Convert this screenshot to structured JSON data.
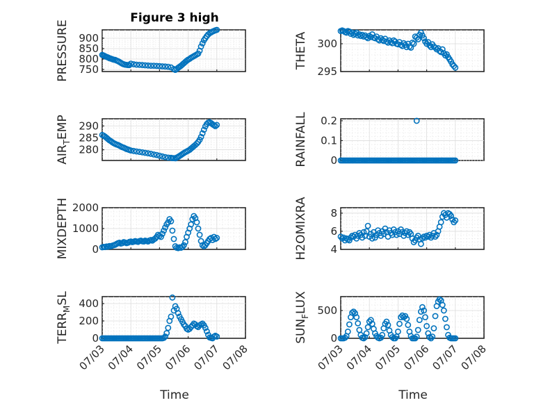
{
  "figure": {
    "title": "Figure 3 high",
    "marker_color": "#0072BD",
    "xlabel": "Time",
    "x_ticks": [
      "07/03",
      "07/04",
      "07/05",
      "07/06",
      "07/07",
      "07/08"
    ]
  },
  "chart_data": [
    {
      "type": "scatter",
      "ylabel": "PRESSURE",
      "title": "Figure 3 high",
      "xlim": [
        0,
        5
      ],
      "ylim": [
        740,
        940
      ],
      "yticks": [
        750,
        800,
        850,
        900
      ],
      "grid": true,
      "x": [
        0.0,
        0.04,
        0.08,
        0.12,
        0.16,
        0.2,
        0.24,
        0.28,
        0.32,
        0.36,
        0.4,
        0.45,
        0.5,
        0.55,
        0.6,
        0.65,
        0.7,
        0.75,
        0.8,
        0.85,
        0.9,
        0.95,
        1.0,
        1.1,
        1.2,
        1.3,
        1.4,
        1.5,
        1.6,
        1.7,
        1.8,
        1.9,
        2.0,
        2.1,
        2.2,
        2.3,
        2.4,
        2.5,
        2.55,
        2.6,
        2.65,
        2.7,
        2.75,
        2.8,
        2.85,
        2.9,
        2.95,
        3.0,
        3.05,
        3.1,
        3.15,
        3.2,
        3.25,
        3.3,
        3.35,
        3.4,
        3.45,
        3.5,
        3.55,
        3.6,
        3.65,
        3.7,
        3.75,
        3.8,
        3.85,
        3.9,
        3.95,
        4.0
      ],
      "y": [
        820,
        818,
        815,
        812,
        810,
        808,
        805,
        803,
        801,
        799,
        797,
        796,
        793,
        790,
        786,
        782,
        778,
        775,
        773,
        772,
        771,
        771,
        778,
        775,
        773,
        772,
        771,
        770,
        769,
        768,
        768,
        767,
        766,
        765,
        764,
        763,
        760,
        752,
        748,
        752,
        758,
        763,
        768,
        774,
        780,
        786,
        792,
        797,
        801,
        806,
        810,
        814,
        818,
        822,
        826,
        840,
        860,
        875,
        890,
        900,
        910,
        918,
        924,
        928,
        932,
        935,
        938,
        940
      ]
    },
    {
      "type": "scatter",
      "ylabel": "THETA",
      "xlim": [
        0,
        5
      ],
      "ylim": [
        295,
        302.5
      ],
      "yticks": [
        295,
        300
      ],
      "grid": true,
      "x": [
        0.0,
        0.05,
        0.1,
        0.15,
        0.2,
        0.25,
        0.3,
        0.35,
        0.4,
        0.45,
        0.5,
        0.55,
        0.6,
        0.65,
        0.7,
        0.75,
        0.8,
        0.85,
        0.9,
        0.95,
        1.0,
        1.05,
        1.1,
        1.15,
        1.2,
        1.25,
        1.3,
        1.35,
        1.4,
        1.45,
        1.5,
        1.55,
        1.6,
        1.65,
        1.7,
        1.75,
        1.8,
        1.85,
        1.9,
        1.95,
        2.0,
        2.05,
        2.1,
        2.15,
        2.2,
        2.25,
        2.3,
        2.35,
        2.4,
        2.45,
        2.5,
        2.55,
        2.6,
        2.65,
        2.7,
        2.75,
        2.8,
        2.85,
        2.9,
        2.95,
        3.0,
        3.05,
        3.1,
        3.15,
        3.2,
        3.25,
        3.3,
        3.35,
        3.4,
        3.45,
        3.5,
        3.55,
        3.6,
        3.65,
        3.7,
        3.75,
        3.8,
        3.85,
        3.9,
        3.95,
        4.0
      ],
      "y": [
        302.3,
        302.4,
        302.3,
        302.1,
        302.0,
        302.3,
        302.2,
        301.8,
        302.0,
        301.6,
        301.8,
        302.0,
        301.5,
        301.7,
        301.4,
        301.6,
        301.3,
        301.5,
        301.2,
        301.0,
        301.4,
        301.2,
        301.7,
        301.1,
        301.0,
        301.3,
        300.8,
        300.6,
        301.0,
        300.7,
        300.5,
        300.9,
        300.4,
        300.2,
        300.6,
        300.3,
        300.1,
        300.6,
        300.4,
        300.0,
        299.9,
        300.3,
        299.8,
        299.6,
        300.1,
        299.8,
        299.4,
        300.0,
        299.5,
        299.3,
        300.2,
        300.0,
        301.3,
        301.1,
        300.8,
        301.6,
        302.0,
        301.5,
        301.0,
        300.4,
        300.0,
        300.3,
        299.7,
        299.4,
        299.9,
        299.5,
        299.3,
        299.0,
        299.2,
        298.7,
        298.5,
        299.0,
        298.3,
        297.9,
        298.1,
        297.6,
        297.2,
        296.8,
        296.3,
        296.0,
        295.7
      ]
    },
    {
      "type": "scatter",
      "ylabel": "AIR_TEMP",
      "xlim": [
        0,
        5
      ],
      "ylim": [
        275.5,
        293
      ],
      "yticks": [
        280,
        285,
        290
      ],
      "grid": true,
      "x": [
        0.0,
        0.05,
        0.1,
        0.15,
        0.2,
        0.25,
        0.3,
        0.35,
        0.4,
        0.45,
        0.5,
        0.55,
        0.6,
        0.65,
        0.7,
        0.75,
        0.8,
        0.85,
        0.9,
        0.95,
        1.0,
        1.1,
        1.2,
        1.3,
        1.4,
        1.5,
        1.6,
        1.7,
        1.8,
        1.9,
        2.0,
        2.1,
        2.2,
        2.3,
        2.4,
        2.45,
        2.5,
        2.55,
        2.6,
        2.65,
        2.7,
        2.75,
        2.8,
        2.85,
        2.9,
        2.95,
        3.0,
        3.05,
        3.1,
        3.15,
        3.2,
        3.25,
        3.3,
        3.35,
        3.4,
        3.45,
        3.5,
        3.55,
        3.6,
        3.65,
        3.7,
        3.75,
        3.8,
        3.85,
        3.9,
        3.95,
        4.0
      ],
      "y": [
        286.2,
        285.9,
        285.5,
        285.0,
        284.5,
        284.0,
        283.6,
        283.2,
        282.8,
        282.5,
        282.2,
        282.0,
        281.7,
        281.4,
        281.1,
        280.9,
        280.6,
        280.3,
        280.1,
        279.9,
        279.7,
        279.5,
        279.3,
        279.1,
        278.9,
        278.7,
        278.5,
        278.3,
        278.0,
        277.8,
        277.5,
        277.2,
        276.9,
        276.7,
        276.6,
        276.5,
        276.5,
        276.4,
        276.7,
        277.0,
        277.4,
        277.8,
        278.2,
        278.6,
        279.0,
        279.3,
        279.6,
        280.0,
        280.5,
        281.0,
        281.5,
        282.0,
        282.6,
        283.3,
        284.2,
        285.4,
        286.9,
        288.4,
        289.8,
        290.8,
        291.4,
        291.6,
        291.2,
        290.7,
        290.3,
        289.9,
        290.4
      ]
    },
    {
      "type": "scatter",
      "ylabel": "RAINFALL",
      "xlim": [
        0,
        5
      ],
      "ylim": [
        0,
        0.21
      ],
      "yticks": [
        0,
        0.1,
        0.2
      ],
      "grid": true,
      "x": [
        0.0,
        0.05,
        0.1,
        0.15,
        0.2,
        0.25,
        0.3,
        0.35,
        0.4,
        0.45,
        0.5,
        0.55,
        0.6,
        0.65,
        0.7,
        0.75,
        0.8,
        0.85,
        0.9,
        0.95,
        1.0,
        1.05,
        1.1,
        1.15,
        1.2,
        1.25,
        1.3,
        1.35,
        1.4,
        1.45,
        1.5,
        1.55,
        1.6,
        1.65,
        1.7,
        1.75,
        1.8,
        1.85,
        1.9,
        1.95,
        2.0,
        2.05,
        2.1,
        2.15,
        2.2,
        2.25,
        2.3,
        2.35,
        2.4,
        2.45,
        2.5,
        2.55,
        2.6,
        2.65,
        2.7,
        2.75,
        2.8,
        2.85,
        2.9,
        2.95,
        3.0,
        3.05,
        3.1,
        3.15,
        3.2,
        3.25,
        3.3,
        3.35,
        3.4,
        3.45,
        3.5,
        3.55,
        3.6,
        3.65,
        3.7,
        3.75,
        3.8,
        3.85,
        3.9,
        3.95,
        4.0,
        2.65
      ],
      "y": [
        0,
        0,
        0,
        0,
        0,
        0,
        0,
        0,
        0,
        0,
        0,
        0,
        0,
        0,
        0,
        0,
        0,
        0,
        0,
        0,
        0,
        0,
        0,
        0,
        0,
        0,
        0,
        0,
        0,
        0,
        0,
        0,
        0,
        0,
        0,
        0,
        0,
        0,
        0,
        0,
        0,
        0,
        0,
        0,
        0,
        0,
        0,
        0,
        0,
        0,
        0,
        0,
        0,
        0,
        0,
        0,
        0,
        0,
        0,
        0,
        0,
        0,
        0,
        0,
        0,
        0,
        0,
        0,
        0,
        0,
        0,
        0,
        0,
        0,
        0,
        0,
        0,
        0,
        0,
        0,
        0,
        0.2
      ]
    },
    {
      "type": "scatter",
      "ylabel": "MIXDEPTH",
      "xlim": [
        0,
        5
      ],
      "ylim": [
        0,
        2000
      ],
      "yticks": [
        0,
        1000,
        2000
      ],
      "grid": true,
      "x": [
        0.0,
        0.05,
        0.1,
        0.15,
        0.2,
        0.25,
        0.3,
        0.35,
        0.4,
        0.45,
        0.5,
        0.55,
        0.6,
        0.65,
        0.7,
        0.75,
        0.8,
        0.85,
        0.9,
        0.95,
        1.0,
        1.05,
        1.1,
        1.15,
        1.2,
        1.25,
        1.3,
        1.35,
        1.4,
        1.45,
        1.5,
        1.55,
        1.6,
        1.65,
        1.7,
        1.75,
        1.8,
        1.85,
        1.9,
        1.95,
        2.0,
        2.05,
        2.1,
        2.15,
        2.2,
        2.25,
        2.3,
        2.35,
        2.4,
        2.45,
        2.5,
        2.55,
        2.6,
        2.65,
        2.7,
        2.75,
        2.8,
        2.85,
        2.9,
        2.95,
        3.0,
        3.05,
        3.1,
        3.15,
        3.2,
        3.25,
        3.3,
        3.35,
        3.4,
        3.45,
        3.5,
        3.55,
        3.6,
        3.65,
        3.7,
        3.75,
        3.8,
        3.85,
        3.9,
        3.95,
        4.0
      ],
      "y": [
        100,
        120,
        110,
        140,
        130,
        160,
        150,
        180,
        200,
        220,
        260,
        300,
        320,
        280,
        300,
        350,
        330,
        300,
        320,
        360,
        380,
        350,
        370,
        400,
        380,
        360,
        400,
        420,
        390,
        380,
        420,
        400,
        380,
        430,
        450,
        420,
        480,
        520,
        600,
        700,
        650,
        600,
        750,
        900,
        1050,
        1200,
        1300,
        1450,
        1350,
        900,
        500,
        150,
        80,
        60,
        100,
        80,
        120,
        200,
        350,
        600,
        800,
        1000,
        1200,
        1450,
        1600,
        1500,
        1300,
        1000,
        700,
        400,
        200,
        150,
        200,
        300,
        400,
        500,
        550,
        450,
        600,
        500,
        550
      ]
    },
    {
      "type": "scatter",
      "ylabel": "H2OMIXRA",
      "xlim": [
        0,
        5
      ],
      "ylim": [
        4,
        8.6
      ],
      "yticks": [
        4,
        6,
        8
      ],
      "grid": true,
      "x": [
        0.0,
        0.05,
        0.1,
        0.15,
        0.2,
        0.25,
        0.3,
        0.35,
        0.4,
        0.45,
        0.5,
        0.55,
        0.6,
        0.65,
        0.7,
        0.75,
        0.8,
        0.85,
        0.9,
        0.95,
        1.0,
        1.05,
        1.1,
        1.15,
        1.2,
        1.25,
        1.3,
        1.35,
        1.4,
        1.45,
        1.5,
        1.55,
        1.6,
        1.65,
        1.7,
        1.75,
        1.8,
        1.85,
        1.9,
        1.95,
        2.0,
        2.05,
        2.1,
        2.15,
        2.2,
        2.25,
        2.3,
        2.35,
        2.4,
        2.45,
        2.5,
        2.55,
        2.6,
        2.65,
        2.7,
        2.75,
        2.8,
        2.85,
        2.9,
        2.95,
        3.0,
        3.05,
        3.1,
        3.15,
        3.2,
        3.25,
        3.3,
        3.35,
        3.4,
        3.45,
        3.5,
        3.55,
        3.6,
        3.65,
        3.7,
        3.75,
        3.8,
        3.85,
        3.9,
        3.95,
        4.0
      ],
      "y": [
        5.4,
        5.2,
        5.3,
        5.0,
        5.2,
        5.1,
        5.0,
        5.3,
        5.5,
        5.4,
        5.6,
        5.2,
        5.5,
        5.8,
        5.6,
        5.3,
        5.9,
        5.5,
        6.0,
        6.6,
        5.4,
        5.7,
        5.2,
        5.9,
        5.3,
        5.6,
        6.1,
        5.8,
        5.5,
        6.0,
        5.7,
        6.3,
        5.9,
        5.4,
        6.1,
        5.8,
        5.6,
        6.2,
        5.9,
        5.6,
        6.0,
        5.7,
        6.2,
        5.9,
        5.5,
        5.8,
        6.0,
        5.6,
        5.9,
        5.7,
        5.2,
        4.8,
        5.0,
        5.3,
        5.5,
        5.1,
        4.6,
        5.2,
        5.4,
        5.3,
        5.5,
        5.4,
        5.6,
        5.3,
        5.5,
        5.8,
        5.4,
        5.6,
        6.0,
        6.5,
        7.0,
        7.6,
        8.0,
        7.8,
        7.5,
        8.0,
        7.9,
        7.7,
        7.3,
        7.0,
        7.2
      ]
    },
    {
      "type": "scatter",
      "ylabel": "TERR_MSL",
      "xlim": [
        0,
        5
      ],
      "ylim": [
        0,
        480
      ],
      "yticks": [
        0,
        200,
        400
      ],
      "grid": true,
      "x": [
        0.0,
        0.05,
        0.1,
        0.15,
        0.2,
        0.25,
        0.3,
        0.35,
        0.4,
        0.45,
        0.5,
        0.55,
        0.6,
        0.65,
        0.7,
        0.75,
        0.8,
        0.85,
        0.9,
        0.95,
        1.0,
        1.05,
        1.1,
        1.15,
        1.2,
        1.25,
        1.3,
        1.35,
        1.4,
        1.45,
        1.5,
        1.55,
        1.6,
        1.65,
        1.7,
        1.75,
        1.8,
        1.85,
        1.9,
        1.95,
        2.0,
        2.05,
        2.1,
        2.15,
        2.2,
        2.25,
        2.3,
        2.35,
        2.4,
        2.45,
        2.5,
        2.55,
        2.6,
        2.65,
        2.7,
        2.75,
        2.8,
        2.85,
        2.9,
        2.95,
        3.0,
        3.05,
        3.1,
        3.15,
        3.2,
        3.25,
        3.3,
        3.35,
        3.4,
        3.45,
        3.5,
        3.55,
        3.6,
        3.65,
        3.7,
        3.75,
        3.8,
        3.85,
        3.9,
        3.95,
        4.0
      ],
      "y": [
        0,
        0,
        0,
        0,
        0,
        0,
        0,
        0,
        0,
        0,
        0,
        0,
        0,
        0,
        0,
        0,
        0,
        0,
        0,
        0,
        0,
        0,
        0,
        0,
        0,
        0,
        0,
        0,
        0,
        0,
        0,
        0,
        0,
        0,
        0,
        0,
        0,
        0,
        0,
        0,
        0,
        0,
        0,
        5,
        20,
        60,
        120,
        200,
        250,
        470,
        320,
        370,
        340,
        290,
        250,
        220,
        190,
        160,
        140,
        110,
        100,
        110,
        130,
        150,
        170,
        160,
        140,
        130,
        150,
        160,
        170,
        150,
        120,
        80,
        40,
        10,
        5,
        0,
        20,
        30,
        20
      ]
    },
    {
      "type": "scatter",
      "ylabel": "SUN_FLUX",
      "xlim": [
        0,
        5
      ],
      "ylim": [
        0,
        750
      ],
      "yticks": [
        0,
        500
      ],
      "grid": true,
      "x": [
        0.0,
        0.05,
        0.1,
        0.15,
        0.2,
        0.25,
        0.3,
        0.35,
        0.4,
        0.45,
        0.5,
        0.55,
        0.6,
        0.65,
        0.7,
        0.75,
        0.8,
        0.85,
        0.9,
        0.95,
        1.0,
        1.05,
        1.1,
        1.15,
        1.2,
        1.25,
        1.3,
        1.35,
        1.4,
        1.45,
        1.5,
        1.55,
        1.6,
        1.65,
        1.7,
        1.75,
        1.8,
        1.85,
        1.9,
        1.95,
        2.0,
        2.05,
        2.1,
        2.15,
        2.2,
        2.25,
        2.3,
        2.35,
        2.4,
        2.45,
        2.5,
        2.55,
        2.6,
        2.65,
        2.7,
        2.75,
        2.8,
        2.85,
        2.9,
        2.95,
        3.0,
        3.05,
        3.1,
        3.15,
        3.2,
        3.25,
        3.3,
        3.35,
        3.4,
        3.45,
        3.5,
        3.55,
        3.6,
        3.65,
        3.7,
        3.75,
        3.8,
        3.85,
        3.9,
        3.95,
        4.0
      ],
      "y": [
        0,
        0,
        0,
        10,
        40,
        120,
        250,
        380,
        460,
        480,
        450,
        380,
        270,
        150,
        60,
        10,
        0,
        20,
        90,
        200,
        300,
        330,
        260,
        170,
        90,
        40,
        10,
        0,
        10,
        60,
        180,
        260,
        300,
        240,
        140,
        60,
        20,
        0,
        0,
        30,
        120,
        260,
        380,
        410,
        380,
        400,
        350,
        240,
        120,
        40,
        0,
        0,
        0,
        30,
        150,
        330,
        480,
        560,
        500,
        380,
        220,
        90,
        20,
        0,
        30,
        180,
        400,
        580,
        660,
        700,
        680,
        600,
        500,
        350,
        200,
        60,
        10,
        0,
        0,
        0,
        0
      ]
    }
  ]
}
